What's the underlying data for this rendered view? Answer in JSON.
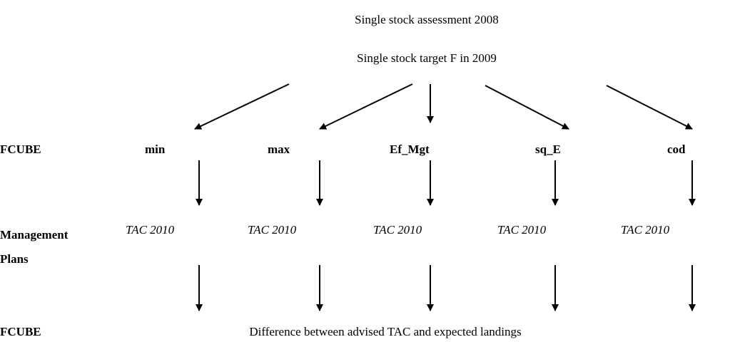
{
  "header": {
    "assessment": "Single stock assessment 2008",
    "target": "Single stock target F in 2009"
  },
  "rows": {
    "fcube_top": "FCUBE",
    "management": "Management Plans",
    "fcube_bottom": "FCUBE"
  },
  "scenarios": [
    "min",
    "max",
    "Ef_Mgt",
    "sq_E",
    "cod"
  ],
  "tacs": [
    "TAC 2010",
    "TAC 2010",
    "TAC 2010",
    "TAC 2010",
    "TAC 2010"
  ],
  "result": "Difference between advised TAC and expected landings"
}
